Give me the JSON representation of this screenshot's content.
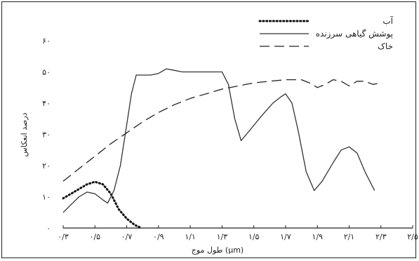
{
  "chart_data": {
    "type": "line",
    "title": "",
    "xlabel": "طول موج (μm)",
    "ylabel": "درصد انعکاس",
    "xlim": [
      0.3,
      2.5
    ],
    "ylim": [
      0,
      60
    ],
    "x_ticks": [
      {
        "value": 0.3,
        "label": "۰/۳"
      },
      {
        "value": 0.5,
        "label": "۰/۵"
      },
      {
        "value": 0.7,
        "label": "۰/۷"
      },
      {
        "value": 0.9,
        "label": "۰/۹"
      },
      {
        "value": 1.1,
        "label": "۱/۱"
      },
      {
        "value": 1.3,
        "label": "۱/۳"
      },
      {
        "value": 1.5,
        "label": "۱/۵"
      },
      {
        "value": 1.7,
        "label": "۱/۷"
      },
      {
        "value": 1.9,
        "label": "۱/۹"
      },
      {
        "value": 2.1,
        "label": "۲/۱"
      },
      {
        "value": 2.3,
        "label": "۲/۳"
      },
      {
        "value": 2.5,
        "label": "۲/۵"
      }
    ],
    "y_ticks": [
      {
        "value": 0,
        "label": "۰"
      },
      {
        "value": 10,
        "label": "۱۰"
      },
      {
        "value": 20,
        "label": "۲۰"
      },
      {
        "value": 30,
        "label": "۳۰"
      },
      {
        "value": 40,
        "label": "۴۰"
      },
      {
        "value": 50,
        "label": "۵۰"
      },
      {
        "value": 60,
        "label": "۶۰"
      }
    ],
    "grid": false,
    "legend_position": "top-right",
    "series": [
      {
        "name": "آب",
        "style": "dotted",
        "color": "#111111",
        "points": [
          [
            0.3,
            9.5
          ],
          [
            0.35,
            11
          ],
          [
            0.4,
            12.5
          ],
          [
            0.45,
            14
          ],
          [
            0.5,
            14.8
          ],
          [
            0.55,
            14
          ],
          [
            0.6,
            11
          ],
          [
            0.65,
            6
          ],
          [
            0.7,
            3
          ],
          [
            0.75,
            1
          ],
          [
            0.78,
            0.3
          ]
        ]
      },
      {
        "name": "پوشش گیاهی سرزنده",
        "style": "solid",
        "color": "#333333",
        "points": [
          [
            0.3,
            5
          ],
          [
            0.35,
            7.5
          ],
          [
            0.4,
            10
          ],
          [
            0.45,
            11.5
          ],
          [
            0.5,
            11
          ],
          [
            0.55,
            9
          ],
          [
            0.58,
            8
          ],
          [
            0.62,
            12
          ],
          [
            0.66,
            20
          ],
          [
            0.7,
            33
          ],
          [
            0.73,
            43
          ],
          [
            0.76,
            49
          ],
          [
            0.8,
            49
          ],
          [
            0.85,
            49
          ],
          [
            0.9,
            49.5
          ],
          [
            0.95,
            51
          ],
          [
            1.0,
            50.5
          ],
          [
            1.05,
            50
          ],
          [
            1.1,
            50
          ],
          [
            1.2,
            50
          ],
          [
            1.3,
            50
          ],
          [
            1.34,
            46
          ],
          [
            1.38,
            35
          ],
          [
            1.42,
            28
          ],
          [
            1.47,
            31
          ],
          [
            1.55,
            36
          ],
          [
            1.62,
            40
          ],
          [
            1.67,
            42
          ],
          [
            1.7,
            43
          ],
          [
            1.74,
            40
          ],
          [
            1.78,
            31
          ],
          [
            1.83,
            18
          ],
          [
            1.88,
            12
          ],
          [
            1.93,
            15
          ],
          [
            2.0,
            21
          ],
          [
            2.05,
            25
          ],
          [
            2.1,
            26
          ],
          [
            2.15,
            24
          ],
          [
            2.2,
            18
          ],
          [
            2.26,
            12
          ]
        ]
      },
      {
        "name": "خاک",
        "style": "dashed",
        "color": "#222222",
        "points": [
          [
            0.3,
            15
          ],
          [
            0.4,
            19
          ],
          [
            0.5,
            23
          ],
          [
            0.6,
            27
          ],
          [
            0.7,
            30.5
          ],
          [
            0.8,
            34
          ],
          [
            0.9,
            37
          ],
          [
            1.0,
            39.5
          ],
          [
            1.1,
            41.5
          ],
          [
            1.2,
            43
          ],
          [
            1.3,
            44.5
          ],
          [
            1.4,
            45.5
          ],
          [
            1.5,
            46.5
          ],
          [
            1.6,
            47
          ],
          [
            1.7,
            47.5
          ],
          [
            1.8,
            47.5
          ],
          [
            1.85,
            46.5
          ],
          [
            1.9,
            45
          ],
          [
            1.95,
            46
          ],
          [
            2.0,
            47.5
          ],
          [
            2.05,
            47
          ],
          [
            2.1,
            45.5
          ],
          [
            2.15,
            47
          ],
          [
            2.2,
            47
          ],
          [
            2.25,
            46
          ],
          [
            2.3,
            46.5
          ]
        ]
      }
    ]
  }
}
